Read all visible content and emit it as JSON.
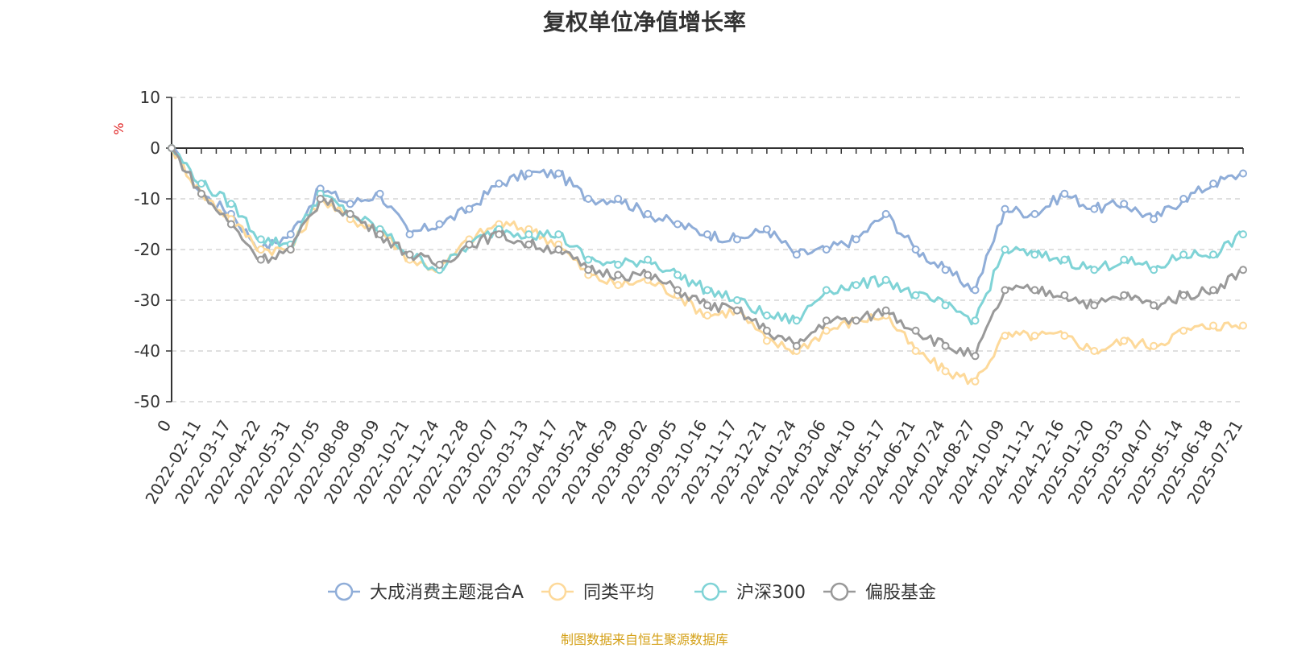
{
  "chart_data": {
    "type": "line",
    "title": "复权单位净值增长率",
    "ylabel": "%",
    "ylim": [
      -50,
      10
    ],
    "yticks": [
      10,
      0,
      -10,
      -20,
      -30,
      -40,
      -50
    ],
    "grid": true,
    "legend_position": "bottom",
    "x": [
      "0",
      "2022-02-11",
      "2022-03-17",
      "2022-04-22",
      "2022-05-31",
      "2022-07-05",
      "2022-08-08",
      "2022-09-09",
      "2022-10-21",
      "2022-11-24",
      "2022-12-28",
      "2023-02-07",
      "2023-03-13",
      "2023-04-17",
      "2023-05-24",
      "2023-06-29",
      "2023-08-02",
      "2023-09-05",
      "2023-10-16",
      "2023-11-17",
      "2023-12-21",
      "2024-01-24",
      "2024-03-06",
      "2024-04-10",
      "2024-05-17",
      "2024-06-21",
      "2024-07-24",
      "2024-08-27",
      "2024-10-09",
      "2024-11-12",
      "2024-12-16",
      "2025-01-20",
      "2025-03-03",
      "2025-04-07",
      "2025-05-14",
      "2025-06-18",
      "2025-07-21"
    ],
    "series": [
      {
        "name": "大成消费主题混合A",
        "color": "#8fadd8",
        "values": [
          0,
          -9,
          -13,
          -20,
          -17,
          -8,
          -11,
          -9,
          -17,
          -15,
          -12,
          -7,
          -5,
          -5,
          -10,
          -10,
          -13,
          -15,
          -17,
          -18,
          -16,
          -21,
          -20,
          -18,
          -13,
          -20,
          -24,
          -28,
          -12,
          -13,
          -9,
          -12,
          -11,
          -14,
          -10,
          -7,
          -5
        ]
      },
      {
        "name": "同类平均",
        "color": "#fdd99a",
        "values": [
          0,
          -9,
          -14,
          -20,
          -20,
          -10,
          -14,
          -16,
          -22,
          -24,
          -18,
          -15,
          -16,
          -19,
          -25,
          -27,
          -26,
          -29,
          -33,
          -32,
          -38,
          -40,
          -36,
          -34,
          -33,
          -40,
          -44,
          -46,
          -37,
          -37,
          -37,
          -40,
          -38,
          -39,
          -36,
          -35,
          -35
        ]
      },
      {
        "name": "沪深300",
        "color": "#7fd3d6",
        "values": [
          0,
          -7,
          -11,
          -18,
          -19,
          -9,
          -13,
          -16,
          -21,
          -24,
          -19,
          -16,
          -17,
          -17,
          -22,
          -23,
          -22,
          -25,
          -28,
          -30,
          -33,
          -34,
          -28,
          -27,
          -26,
          -29,
          -31,
          -34,
          -20,
          -21,
          -22,
          -24,
          -22,
          -24,
          -21,
          -21,
          -17
        ]
      },
      {
        "name": "偏股基金",
        "color": "#999999",
        "values": [
          0,
          -9,
          -15,
          -22,
          -20,
          -10,
          -13,
          -17,
          -21,
          -23,
          -19,
          -17,
          -19,
          -20,
          -24,
          -25,
          -25,
          -28,
          -31,
          -32,
          -36,
          -39,
          -34,
          -34,
          -32,
          -36,
          -39,
          -41,
          -28,
          -28,
          -29,
          -31,
          -29,
          -31,
          -29,
          -28,
          -24
        ]
      }
    ]
  },
  "source_note": "制图数据来自恒生聚源数据库"
}
